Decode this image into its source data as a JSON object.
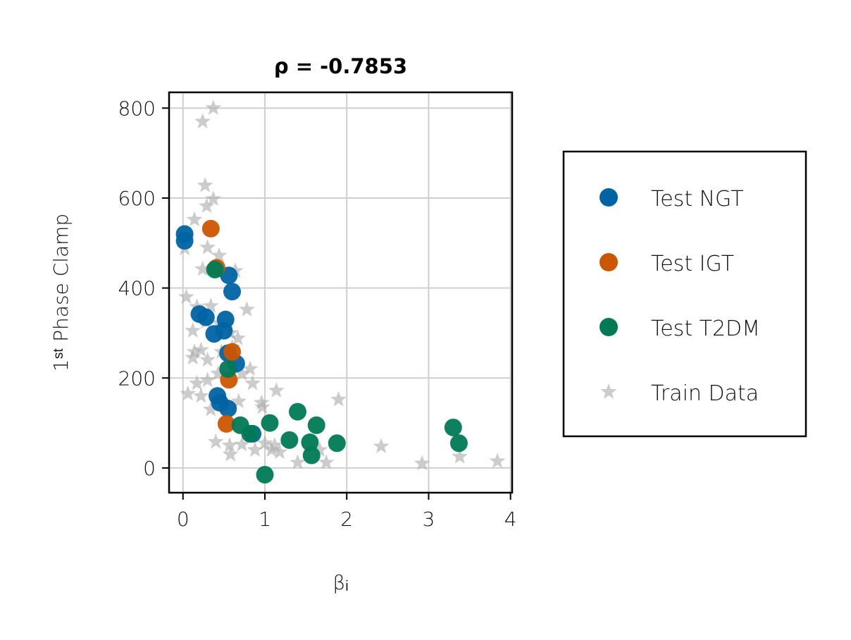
{
  "chart_data": {
    "type": "scatter",
    "title": "ρ = -0.7853",
    "xlabel": "βᵢ",
    "ylabel": "1ˢᵗ Phase Clamp",
    "xlim": [
      -0.17,
      4.02
    ],
    "ylim": [
      -55,
      835
    ],
    "xticks": [
      0,
      1,
      2,
      3,
      4
    ],
    "yticks": [
      0,
      200,
      400,
      600,
      800
    ],
    "grid": true,
    "legend": "right",
    "series": [
      {
        "name": "Test NGT",
        "marker": "circle",
        "color": "#0063A3",
        "points": [
          [
            0.02,
            520
          ],
          [
            0.02,
            505
          ],
          [
            0.2,
            342
          ],
          [
            0.28,
            335
          ],
          [
            0.38,
            298
          ],
          [
            0.5,
            305
          ],
          [
            0.52,
            330
          ],
          [
            0.56,
            428
          ],
          [
            0.6,
            392
          ],
          [
            0.55,
            255
          ],
          [
            0.65,
            232
          ],
          [
            0.42,
            160
          ],
          [
            0.45,
            145
          ],
          [
            0.55,
            132
          ],
          [
            0.85,
            76
          ]
        ]
      },
      {
        "name": "Test IGT",
        "marker": "circle",
        "color": "#CC5500",
        "points": [
          [
            0.34,
            532
          ],
          [
            0.41,
            445
          ],
          [
            0.6,
            258
          ],
          [
            0.56,
            196
          ],
          [
            0.53,
            98
          ]
        ]
      },
      {
        "name": "Test T2DM",
        "marker": "circle",
        "color": "#007A55",
        "points": [
          [
            0.39,
            441
          ],
          [
            0.55,
            220
          ],
          [
            0.7,
            95
          ],
          [
            0.82,
            76
          ],
          [
            1.0,
            -15
          ],
          [
            1.06,
            100
          ],
          [
            1.3,
            62
          ],
          [
            1.4,
            125
          ],
          [
            1.55,
            57
          ],
          [
            1.57,
            28
          ],
          [
            1.63,
            95
          ],
          [
            1.88,
            55
          ],
          [
            3.3,
            90
          ],
          [
            3.37,
            55
          ]
        ]
      },
      {
        "name": "Train Data",
        "marker": "star",
        "color": "#AAAAAA",
        "points": [
          [
            0.37,
            800
          ],
          [
            0.24,
            770
          ],
          [
            0.27,
            628
          ],
          [
            0.29,
            582
          ],
          [
            0.37,
            598
          ],
          [
            0.14,
            552
          ],
          [
            0.02,
            488
          ],
          [
            0.3,
            490
          ],
          [
            0.44,
            472
          ],
          [
            0.24,
            442
          ],
          [
            0.64,
            438
          ],
          [
            0.04,
            380
          ],
          [
            0.78,
            352
          ],
          [
            0.17,
            358
          ],
          [
            0.34,
            360
          ],
          [
            0.12,
            305
          ],
          [
            0.28,
            325
          ],
          [
            0.44,
            322
          ],
          [
            0.58,
            300
          ],
          [
            0.67,
            288
          ],
          [
            0.14,
            258
          ],
          [
            0.22,
            262
          ],
          [
            0.3,
            240
          ],
          [
            0.12,
            245
          ],
          [
            0.47,
            258
          ],
          [
            0.6,
            268
          ],
          [
            0.82,
            220
          ],
          [
            0.72,
            210
          ],
          [
            0.43,
            210
          ],
          [
            0.85,
            188
          ],
          [
            0.17,
            188
          ],
          [
            0.22,
            160
          ],
          [
            0.06,
            165
          ],
          [
            0.3,
            195
          ],
          [
            0.34,
            130
          ],
          [
            0.68,
            148
          ],
          [
            0.96,
            145
          ],
          [
            0.97,
            135
          ],
          [
            1.14,
            172
          ],
          [
            1.9,
            152
          ],
          [
            0.4,
            58
          ],
          [
            0.57,
            50
          ],
          [
            0.58,
            30
          ],
          [
            0.72,
            52
          ],
          [
            0.88,
            40
          ],
          [
            1.0,
            55
          ],
          [
            1.08,
            40
          ],
          [
            1.18,
            35
          ],
          [
            1.12,
            50
          ],
          [
            1.4,
            12
          ],
          [
            1.75,
            12
          ],
          [
            1.67,
            40
          ],
          [
            2.42,
            48
          ],
          [
            2.92,
            10
          ],
          [
            3.38,
            25
          ],
          [
            3.84,
            15
          ]
        ]
      }
    ]
  }
}
